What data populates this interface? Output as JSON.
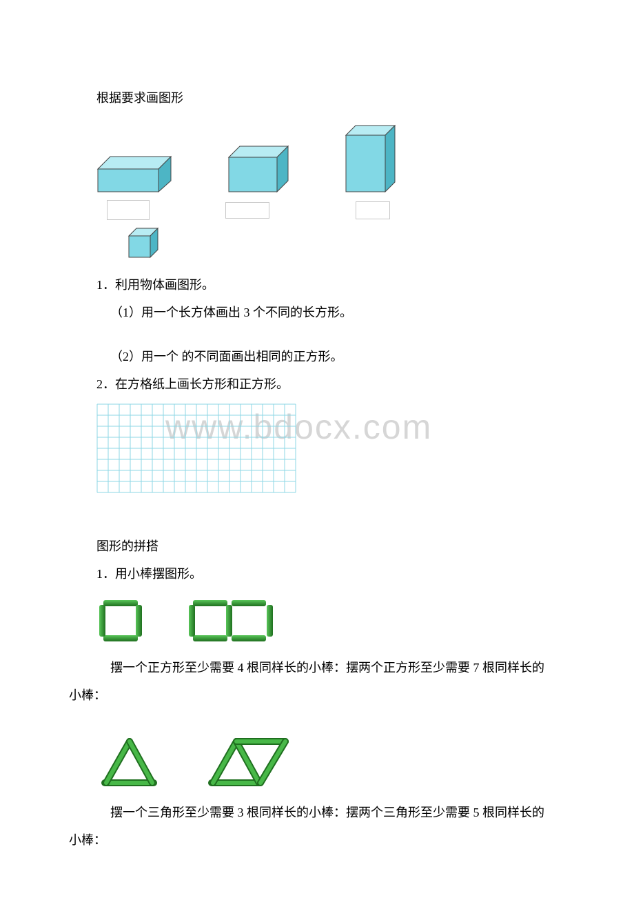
{
  "watermark": "www.bdocx.com",
  "section1": {
    "title": "根据要求画图形",
    "shape_color": "#82d8e5",
    "shape_edge_dark": "#4db5c5",
    "shape_edge_light": "#b8ecf3",
    "answer_box_border": "#c8c8c8",
    "q1": "1．利用物体画图形。",
    "q1_1": "（1）用一个长方体画出 3 个不同的长方形。",
    "q1_2": "（2）用一个 的不同面画出相同的正方形。",
    "q2": "2．在方格纸上画长方形和正方形。",
    "grid": {
      "cols": 18,
      "rows": 8,
      "cell": 16,
      "line_color": "#8dd7e6"
    }
  },
  "section2": {
    "title": "图形的拼搭",
    "q1": "1．用小棒摆图形。",
    "stick_color": "#2e9a2e",
    "stick_dark": "#1f6f1f",
    "text1a": "摆一个正方形至少需要 4 根同样长的小棒：摆两个正方形至少需要 7 根同样长的",
    "text1b": "小棒：",
    "text2a": "摆一个三角形至少需要 3 根同样长的小棒：摆两个三角形至少需要 5 根同样长的",
    "text2b": "小棒："
  }
}
